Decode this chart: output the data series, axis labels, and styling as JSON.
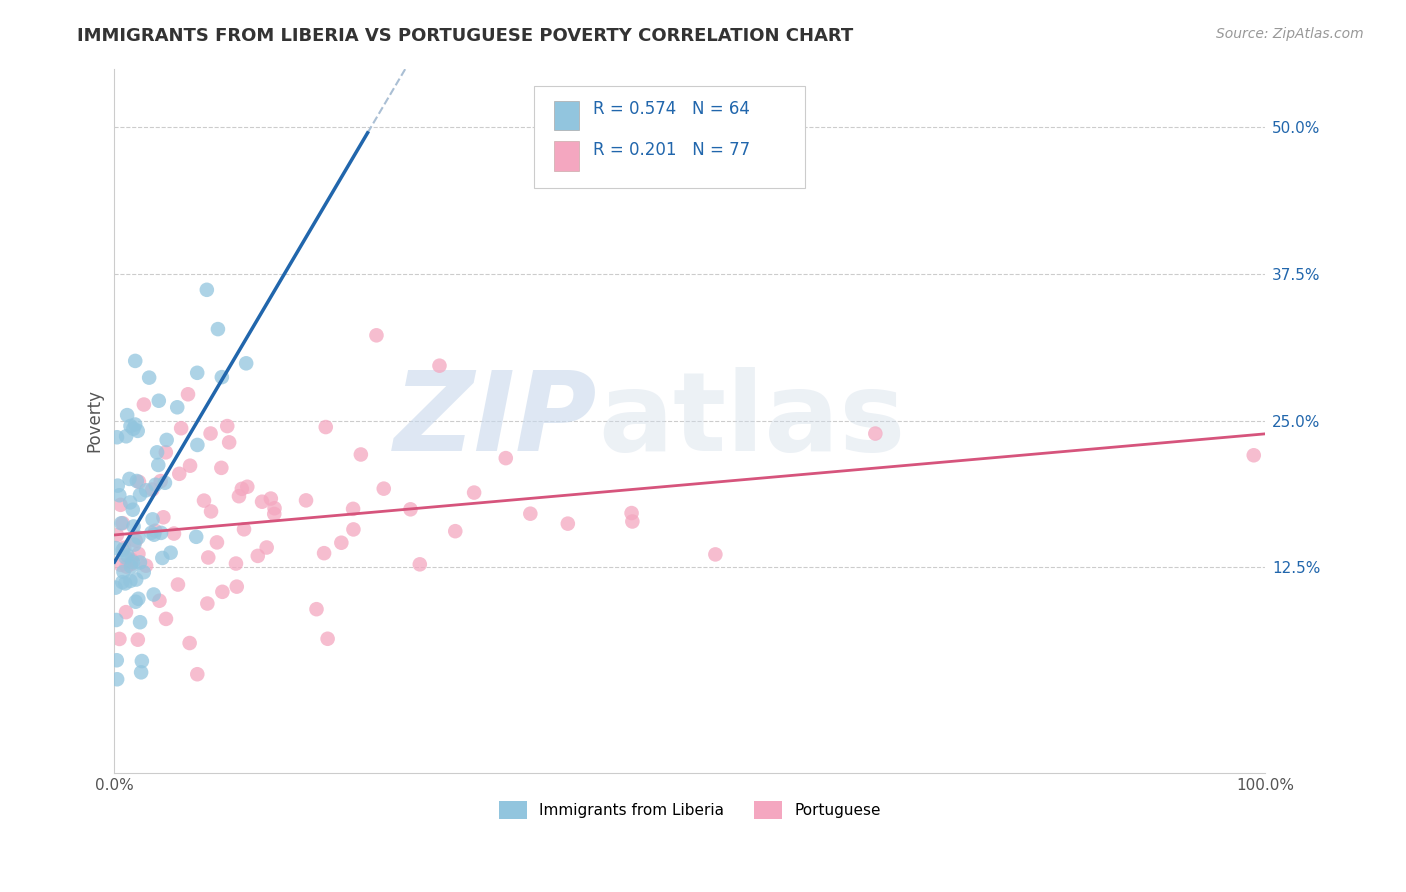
{
  "title": "IMMIGRANTS FROM LIBERIA VS PORTUGUESE POVERTY CORRELATION CHART",
  "source": "Source: ZipAtlas.com",
  "ylabel": "Poverty",
  "xlim": [
    0,
    1
  ],
  "ylim": [
    -0.05,
    0.55
  ],
  "legend_r1": "R = 0.574",
  "legend_n1": "N = 64",
  "legend_r2": "R = 0.201",
  "legend_n2": "N = 77",
  "label1": "Immigrants from Liberia",
  "label2": "Portuguese",
  "color1": "#92C5DE",
  "color2": "#F4A7C0",
  "line_color1": "#2166AC",
  "line_color2": "#D6547C",
  "dash_color": "#AABFD4",
  "bg_color": "#ffffff",
  "grid_color": "#CCCCCC",
  "title_color": "#333333",
  "ytick_color": "#2166AC",
  "ytick_vals": [
    0.125,
    0.25,
    0.375,
    0.5
  ],
  "ytick_labels": [
    "12.5%",
    "25.0%",
    "37.5%",
    "50.0%"
  ]
}
